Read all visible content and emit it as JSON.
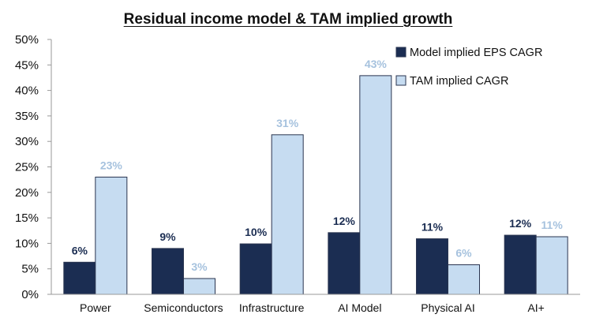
{
  "colors": {
    "eps": "#1b2d52",
    "tam": "#c6dcf1",
    "tam_stroke": "#2a3550",
    "eps_label": "#1b2d52",
    "tam_label": "#a6c2de",
    "axis": "#999999"
  },
  "chart_data": {
    "type": "bar",
    "title": "Residual income model & TAM implied growth",
    "xlabel": "",
    "ylabel": "",
    "ylim": [
      0,
      50
    ],
    "yticks": [
      "0%",
      "5%",
      "10%",
      "15%",
      "20%",
      "25%",
      "30%",
      "35%",
      "40%",
      "45%",
      "50%"
    ],
    "grid": false,
    "legend_position": "top-right",
    "categories": [
      "Power",
      "Semiconductors",
      "Infrastructure",
      "AI Model",
      "Physical AI",
      "AI+"
    ],
    "series": [
      {
        "name": "Model implied EPS CAGR",
        "values": [
          6.3,
          9.0,
          9.9,
          12.1,
          10.9,
          11.6
        ],
        "labels": [
          "6%",
          "9%",
          "10%",
          "12%",
          "11%",
          "12%"
        ]
      },
      {
        "name": "TAM implied CAGR",
        "values": [
          23.0,
          3.1,
          31.3,
          42.9,
          5.8,
          11.3
        ],
        "labels": [
          "23%",
          "3%",
          "31%",
          "43%",
          "6%",
          "11%"
        ]
      }
    ]
  }
}
